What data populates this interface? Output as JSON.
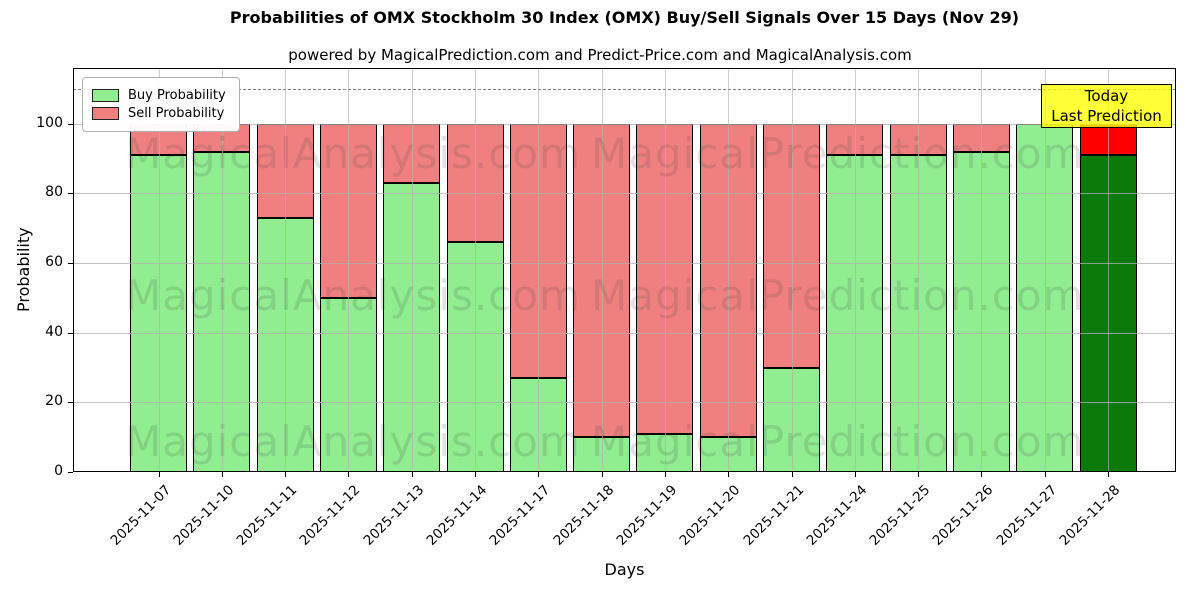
{
  "title": "Probabilities of OMX Stockholm 30 Index (OMX) Buy/Sell Signals Over 15 Days (Nov 29)",
  "subtitle": "powered by MagicalPrediction.com and Predict-Price.com and MagicalAnalysis.com",
  "legend": {
    "buy_label": "Buy Probability",
    "sell_label": "Sell Probability"
  },
  "annotation": {
    "line1": "Today",
    "line2": "Last Prediction"
  },
  "watermarks": {
    "left_text": "MagicalAnalysis.com",
    "right_text": "MagicalPrediction.com"
  },
  "colors": {
    "buy": "#90ee90",
    "sell": "#f08080",
    "today_buy": "#0b7a0b",
    "today_sell": "#ff0000",
    "annotation_bg": "#ffff00",
    "grid": "#b0b0b0",
    "dashed_line": "#7f7f7f",
    "bar_edge": "#000000"
  },
  "chart_data": {
    "type": "bar",
    "stacked": true,
    "title": "Probabilities of OMX Stockholm 30 Index (OMX) Buy/Sell Signals Over 15 Days (Nov 29)",
    "xlabel": "Days",
    "ylabel": "Probability",
    "ylim": [
      0,
      116
    ],
    "yticks": [
      0,
      20,
      40,
      60,
      80,
      100
    ],
    "dashed_line_y": 110,
    "grid": true,
    "legend_position": "upper left",
    "categories": [
      "2025-11-07",
      "2025-11-10",
      "2025-11-11",
      "2025-11-12",
      "2025-11-13",
      "2025-11-14",
      "2025-11-17",
      "2025-11-18",
      "2025-11-19",
      "2025-11-20",
      "2025-11-21",
      "2025-11-24",
      "2025-11-25",
      "2025-11-26",
      "2025-11-27",
      "2025-11-28"
    ],
    "series": [
      {
        "name": "Buy Probability",
        "color": "#90ee90",
        "values": [
          91,
          92,
          73,
          50,
          83,
          66,
          27,
          10,
          11,
          10,
          30,
          91,
          91,
          92,
          100,
          91
        ]
      },
      {
        "name": "Sell Probability",
        "color": "#f08080",
        "values": [
          9,
          8,
          27,
          50,
          17,
          34,
          73,
          90,
          89,
          90,
          70,
          9,
          9,
          8,
          0,
          9
        ]
      }
    ],
    "today_index": 15,
    "today_label": "Today\nLast Prediction"
  }
}
